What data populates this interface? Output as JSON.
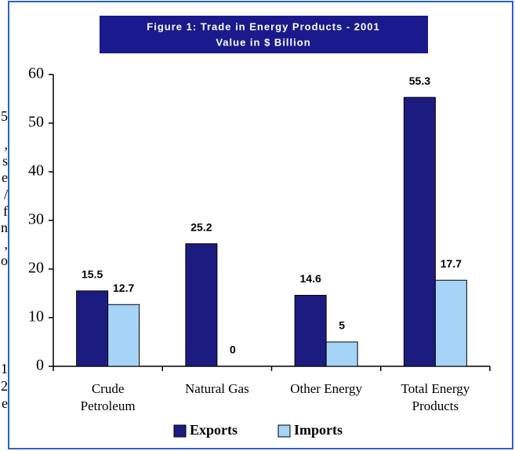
{
  "chart_data": {
    "type": "bar",
    "title": "Figure 1: Trade in Energy Products - 2001",
    "subtitle": "Value in $ Billion",
    "categories": [
      [
        "Crude",
        "Petroleum"
      ],
      [
        "Natural Gas"
      ],
      [
        "Other Energy"
      ],
      [
        "Total Energy",
        "Products"
      ]
    ],
    "series": [
      {
        "name": "Exports",
        "color": "#1c1c80",
        "values": [
          15.5,
          25.2,
          14.6,
          55.3
        ]
      },
      {
        "name": "Imports",
        "color": "#a6d4f7",
        "values": [
          12.7,
          0,
          5,
          17.7
        ]
      }
    ],
    "ylim": [
      0,
      60
    ],
    "yticks": [
      0,
      10,
      20,
      30,
      40,
      50,
      60
    ],
    "grid": false,
    "legend": "bottom"
  },
  "margin_fragments": [
    "5",
    ",",
    "s",
    "e",
    "/",
    "f",
    "n",
    ",",
    "o",
    "1",
    "2",
    "e"
  ]
}
